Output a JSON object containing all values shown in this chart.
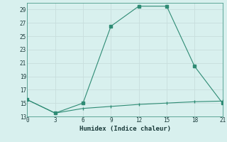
{
  "line1_x": [
    0,
    3,
    6,
    9,
    12,
    15,
    18,
    21
  ],
  "line1_y": [
    15.5,
    13.5,
    15,
    26.5,
    29.5,
    29.5,
    20.5,
    15
  ],
  "line2_x": [
    0,
    3,
    6,
    9,
    12,
    15,
    18,
    21
  ],
  "line2_y": [
    15.5,
    13.5,
    14.2,
    14.5,
    14.8,
    15.0,
    15.2,
    15.3
  ],
  "color": "#2e8b74",
  "bg_color": "#d8f0ee",
  "grid_color": "#c8dedd",
  "xlabel": "Humidex (Indice chaleur)",
  "ylim": [
    13,
    30
  ],
  "xlim": [
    0,
    21
  ],
  "yticks": [
    13,
    15,
    17,
    19,
    21,
    23,
    25,
    27,
    29
  ],
  "xticks": [
    0,
    3,
    6,
    9,
    12,
    15,
    18,
    21
  ]
}
